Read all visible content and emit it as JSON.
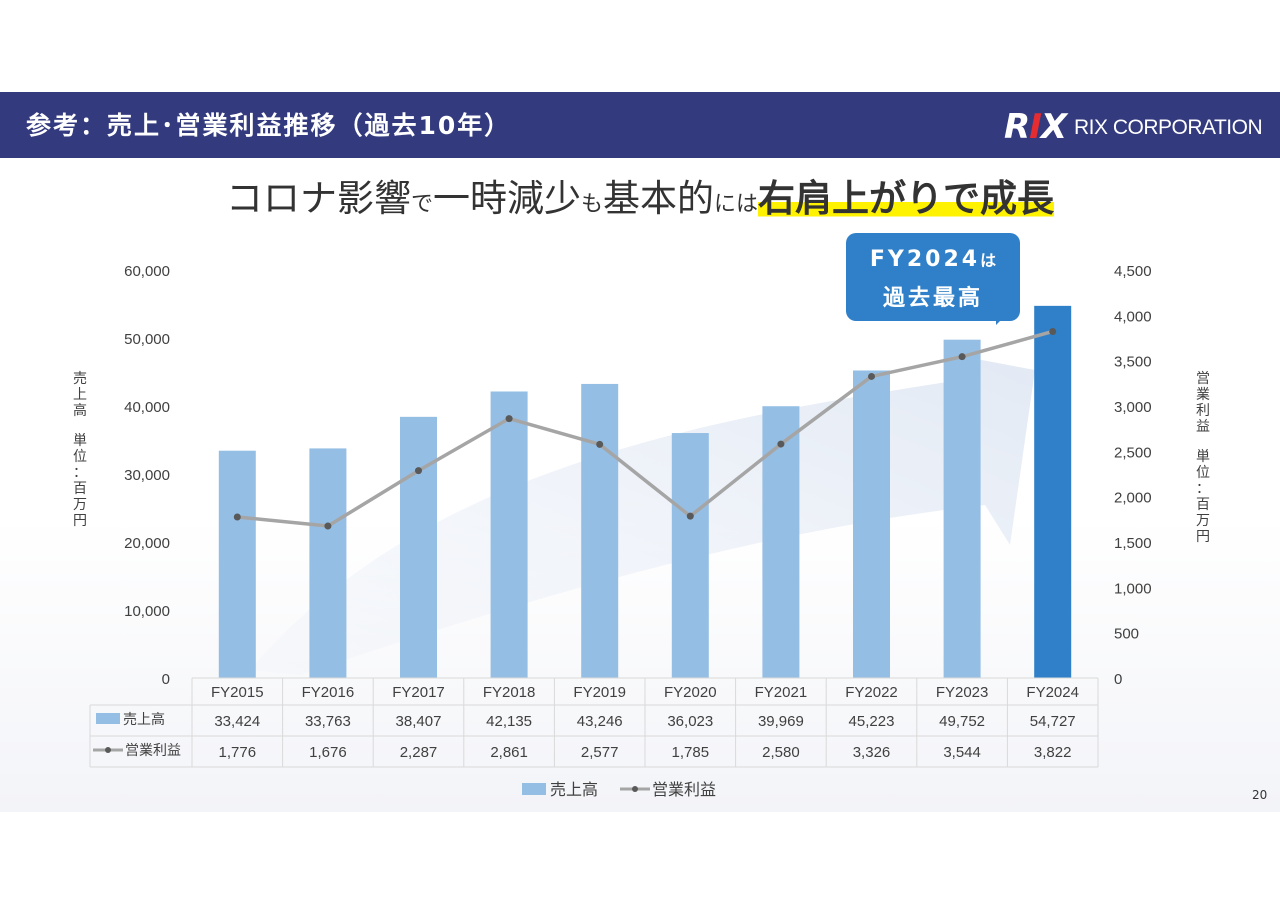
{
  "header": {
    "title": "参考：売上･営業利益推移（過去10年）",
    "logo_mark": "RIX",
    "logo_text": "RIX CORPORATION"
  },
  "headline": {
    "part1": "コロナ影響",
    "part2": "で",
    "part3": "一時減少",
    "part4": "も",
    "part5": "基本的",
    "part6": "には",
    "part7": "右肩上がりで成長"
  },
  "callout": {
    "line1_main": "FY2024",
    "line1_suffix": "は",
    "line2": "過去最高"
  },
  "page_number": "20",
  "colors": {
    "header_bg": "#333a7e",
    "bar": "#95bee4",
    "bar_highlight": "#2f80c8",
    "line": "#a5a5a5",
    "marker": "#595959",
    "highlighter": "#fff200"
  },
  "chart_data": {
    "type": "bar",
    "categories": [
      "FY2015",
      "FY2016",
      "FY2017",
      "FY2018",
      "FY2019",
      "FY2020",
      "FY2021",
      "FY2022",
      "FY2023",
      "FY2024"
    ],
    "series": [
      {
        "name": "売上高",
        "type": "bar",
        "axis": "left",
        "values": [
          33424,
          33763,
          38407,
          42135,
          43246,
          36023,
          39969,
          45223,
          49752,
          54727
        ],
        "labels": [
          "33,424",
          "33,763",
          "38,407",
          "42,135",
          "43,246",
          "36,023",
          "39,969",
          "45,223",
          "49,752",
          "54,727"
        ]
      },
      {
        "name": "営業利益",
        "type": "line",
        "axis": "right",
        "values": [
          1776,
          1676,
          2287,
          2861,
          2577,
          1785,
          2580,
          3326,
          3544,
          3822
        ],
        "labels": [
          "1,776",
          "1,676",
          "2,287",
          "2,861",
          "2,577",
          "1,785",
          "2,580",
          "3,326",
          "3,544",
          "3,822"
        ]
      }
    ],
    "ylim_left": [
      0,
      60000
    ],
    "ylim_right": [
      0,
      4500
    ],
    "yticks_left": [
      "0",
      "10,000",
      "20,000",
      "30,000",
      "40,000",
      "50,000",
      "60,000"
    ],
    "yticks_right": [
      "0",
      "500",
      "1,000",
      "1,500",
      "2,000",
      "2,500",
      "3,000",
      "3,500",
      "4,000",
      "4,500"
    ],
    "ylabel_left_1": "売上高",
    "ylabel_left_2": "単位：百万円",
    "ylabel_right_1": "営業利益",
    "ylabel_right_2": "単位：百万円",
    "legend": [
      "売上高",
      "営業利益"
    ],
    "highlight_category": "FY2024",
    "grid": false,
    "legend_position": "bottom",
    "data_table": true
  }
}
